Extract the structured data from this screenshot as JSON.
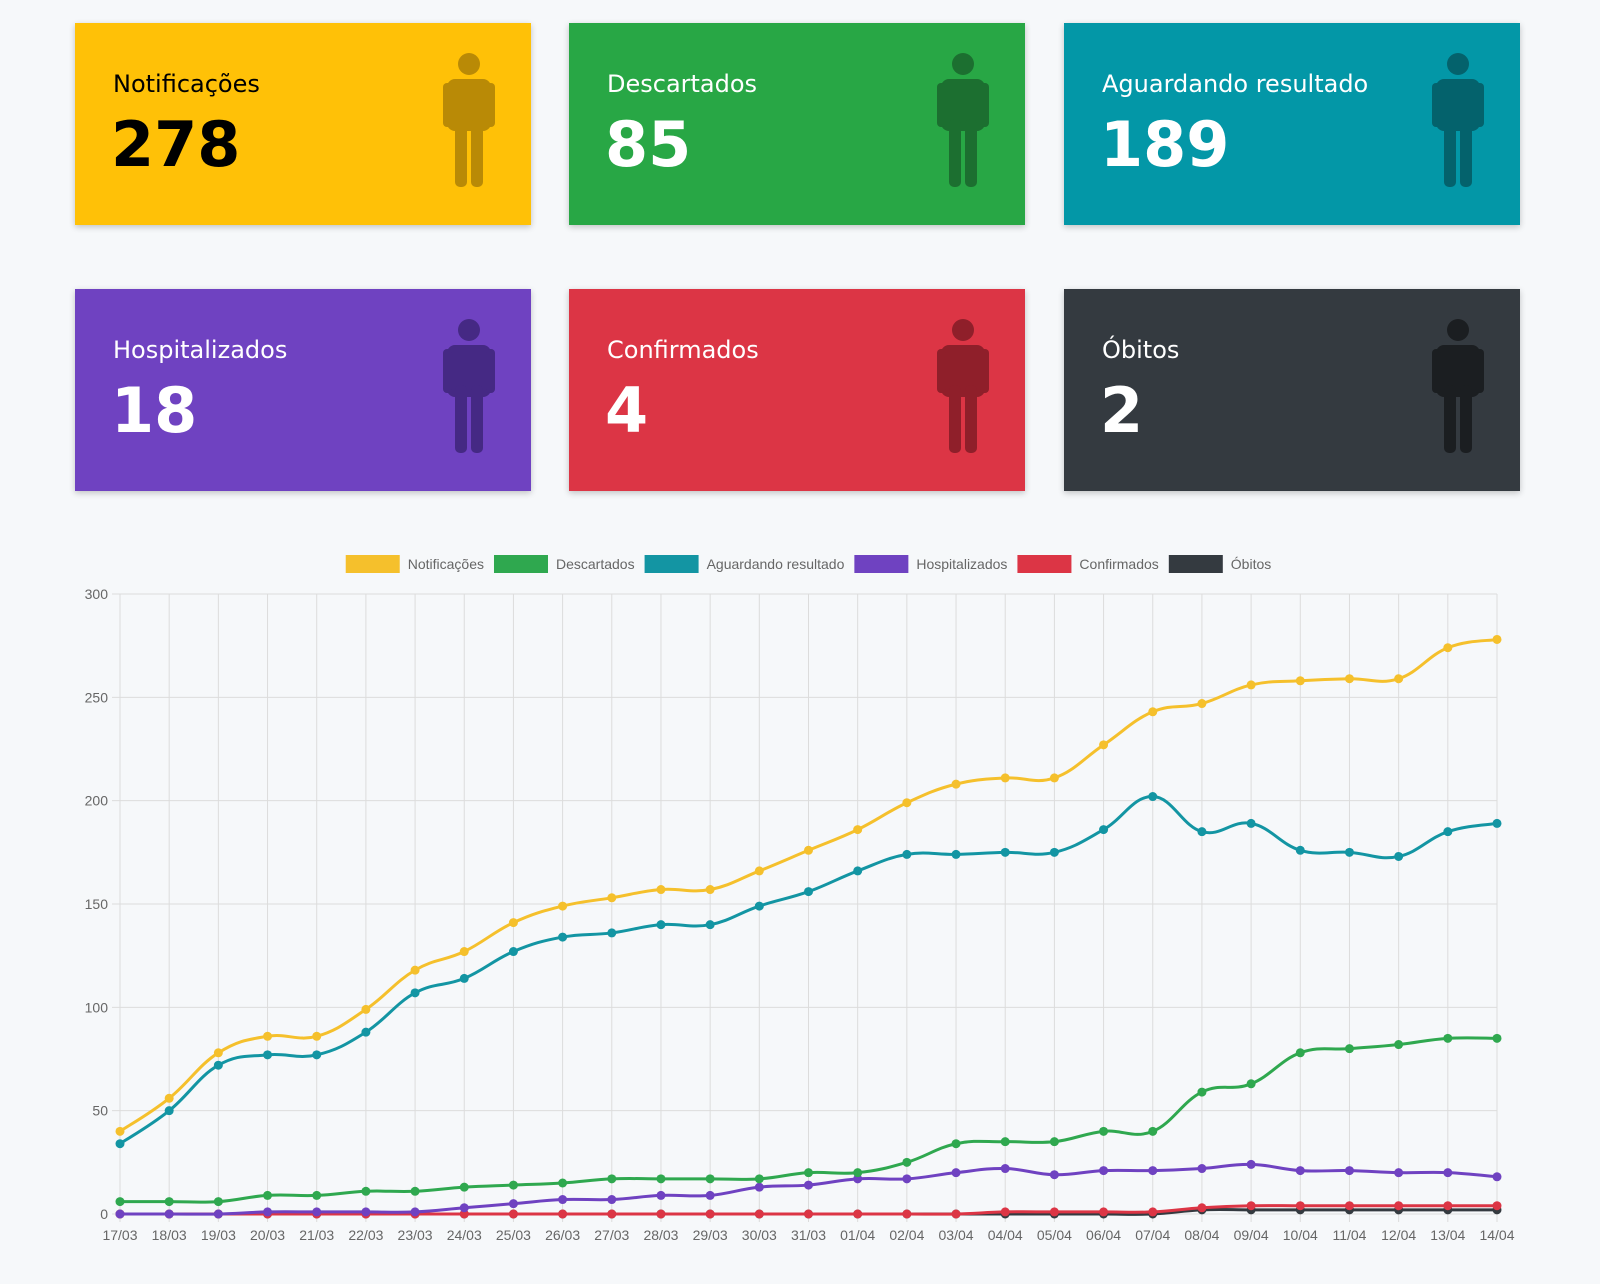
{
  "cards": [
    {
      "label": "Notificações",
      "value": "278",
      "bg": "#ffc107",
      "text_color": "#000000",
      "icon_color": "#b98a06",
      "icon": "person-icon"
    },
    {
      "label": "Descartados",
      "value": "85",
      "bg": "#28a745",
      "text_color": "#ffffff",
      "icon_color": "#1c6f30",
      "icon": "person-icon"
    },
    {
      "label": "Aguardando resultado",
      "value": "189",
      "bg": "#0397a7",
      "text_color": "#ffffff",
      "icon_color": "#04626c",
      "icon": "person-icon"
    },
    {
      "label": "Hospitalizados",
      "value": "18",
      "bg": "#6f42c1",
      "text_color": "#ffffff",
      "icon_color": "#452984",
      "icon": "person-icon"
    },
    {
      "label": "Confirmados",
      "value": "4",
      "bg": "#dc3545",
      "text_color": "#ffffff",
      "icon_color": "#8f1f2a",
      "icon": "person-icon"
    },
    {
      "label": "Óbitos",
      "value": "2",
      "bg": "#343a40",
      "text_color": "#ffffff",
      "icon_color": "#1b1e21",
      "icon": "person-icon"
    }
  ],
  "chart_data": {
    "type": "line",
    "categories": [
      "17/03",
      "18/03",
      "19/03",
      "20/03",
      "21/03",
      "22/03",
      "23/03",
      "24/03",
      "25/03",
      "26/03",
      "27/03",
      "28/03",
      "29/03",
      "30/03",
      "31/03",
      "01/04",
      "02/04",
      "03/04",
      "04/04",
      "05/04",
      "06/04",
      "07/04",
      "08/04",
      "09/04",
      "10/04",
      "11/04",
      "12/04",
      "13/04",
      "14/04"
    ],
    "ylim": [
      0,
      300
    ],
    "yticks": [
      0,
      50,
      100,
      150,
      200,
      250,
      300
    ],
    "grid": true,
    "legend_position": "top",
    "series": [
      {
        "name": "Notificações",
        "color": "#f5c02c",
        "values": [
          40,
          56,
          78,
          86,
          86,
          99,
          118,
          127,
          141,
          149,
          153,
          157,
          157,
          166,
          176,
          186,
          199,
          208,
          211,
          211,
          227,
          243,
          247,
          256,
          258,
          259,
          259,
          274,
          278
        ]
      },
      {
        "name": "Descartados",
        "color": "#2fa84f",
        "values": [
          6,
          6,
          6,
          9,
          9,
          11,
          11,
          13,
          14,
          15,
          17,
          17,
          17,
          17,
          20,
          20,
          25,
          34,
          35,
          35,
          40,
          40,
          59,
          63,
          78,
          80,
          82,
          85,
          85
        ]
      },
      {
        "name": "Aguardando resultado",
        "color": "#1395a3",
        "values": [
          34,
          50,
          72,
          77,
          77,
          88,
          107,
          114,
          127,
          134,
          136,
          140,
          140,
          149,
          156,
          166,
          174,
          174,
          175,
          175,
          186,
          202,
          185,
          189,
          176,
          175,
          173,
          185,
          189
        ]
      },
      {
        "name": "Hospitalizados",
        "color": "#6f42c1",
        "values": [
          0,
          0,
          0,
          1,
          1,
          1,
          1,
          3,
          5,
          7,
          7,
          9,
          9,
          13,
          14,
          17,
          17,
          20,
          22,
          19,
          21,
          21,
          22,
          24,
          21,
          21,
          20,
          20,
          18
        ]
      },
      {
        "name": "Confirmados",
        "color": "#dc3545",
        "values": [
          0,
          0,
          0,
          0,
          0,
          0,
          0,
          0,
          0,
          0,
          0,
          0,
          0,
          0,
          0,
          0,
          0,
          0,
          1,
          1,
          1,
          1,
          3,
          4,
          4,
          4,
          4,
          4,
          4
        ]
      },
      {
        "name": "Óbitos",
        "color": "#343a40",
        "values": [
          0,
          0,
          0,
          0,
          0,
          0,
          0,
          0,
          0,
          0,
          0,
          0,
          0,
          0,
          0,
          0,
          0,
          0,
          0,
          0,
          0,
          0,
          2,
          2,
          2,
          2,
          2,
          2,
          2
        ]
      }
    ]
  }
}
